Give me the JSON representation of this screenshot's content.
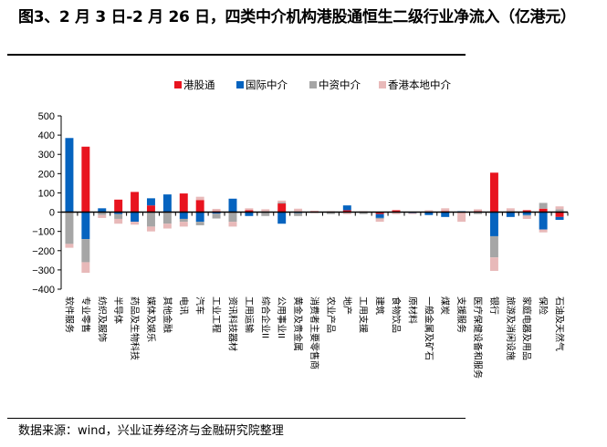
{
  "title": "图3、2 月 3 日-2 月 26 日，四类中介机构港股通恒生二级行业净流入（亿港元）",
  "source": "数据来源：wind，兴业证券经济与金融研究院整理",
  "colors": {
    "港股通": "#e8141f",
    "国际中介": "#0563bf",
    "中资中介": "#a6a6a6",
    "香港本地中介": "#e8b9b9"
  },
  "chart_data": {
    "type": "bar",
    "stacked": true,
    "title": "图3、2 月 3 日-2 月 26 日，四类中介机构港股通恒生二级行业净流入（亿港元）",
    "xlabel": "",
    "ylabel": "",
    "ylim": [
      -400,
      500
    ],
    "yticks": [
      500,
      400,
      300,
      200,
      100,
      0,
      -100,
      -200,
      -300,
      -400
    ],
    "legend_position": "top",
    "grid": false,
    "categories": [
      "软件服务",
      "专业零售",
      "纺织及服饰",
      "半导体",
      "药品及生物科技",
      "媒体及娱乐",
      "其他金融",
      "电讯",
      "汽车",
      "工业工程",
      "资讯科技器材",
      "工用运输",
      "综合企业II",
      "公用事业II",
      "黄金及贵金属",
      "消费者主要零售商",
      "农业产品",
      "地产",
      "工用支援",
      "建筑",
      "食物饮品",
      "原材料",
      "一般金属及矿石",
      "煤炭",
      "支援服务",
      "医疗保健设备和服务",
      "银行",
      "旅游及消闲设施",
      "家庭电器及用品",
      "保险",
      "石油及天然气"
    ],
    "series": [
      {
        "name": "港股通",
        "values": [
          0,
          340,
          0,
          65,
          105,
          35,
          0,
          97,
          63,
          5,
          0,
          10,
          0,
          45,
          3,
          5,
          0,
          10,
          0,
          -10,
          10,
          0,
          0,
          5,
          0,
          5,
          205,
          0,
          10,
          18,
          -25
        ]
      },
      {
        "name": "国际中介",
        "values": [
          385,
          -140,
          20,
          -10,
          -50,
          37,
          92,
          -35,
          -50,
          -8,
          70,
          -20,
          0,
          -60,
          -5,
          0,
          0,
          25,
          0,
          -20,
          0,
          -5,
          -15,
          -25,
          5,
          0,
          -125,
          -25,
          -15,
          -90,
          -15
        ]
      },
      {
        "name": "中资中介",
        "values": [
          -165,
          -120,
          -15,
          -25,
          0,
          -75,
          -60,
          -15,
          -18,
          -25,
          -50,
          0,
          -20,
          5,
          -15,
          0,
          -10,
          0,
          -10,
          -5,
          0,
          0,
          0,
          0,
          0,
          -10,
          -110,
          5,
          -5,
          30,
          15
        ]
      },
      {
        "name": "香港本地中介",
        "values": [
          -20,
          -55,
          -15,
          -25,
          -15,
          -25,
          -25,
          -25,
          17,
          12,
          -25,
          10,
          15,
          10,
          15,
          -5,
          5,
          -10,
          5,
          -15,
          -10,
          -5,
          10,
          15,
          -50,
          10,
          -70,
          15,
          -15,
          -15,
          15
        ]
      }
    ]
  }
}
